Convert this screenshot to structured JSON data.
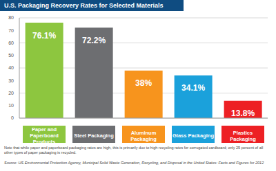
{
  "chart_data": {
    "type": "bar",
    "title": "U.S. Packaging Recovery Rates for Selected Materials",
    "categories": [
      "Paper and Paperboard Products",
      "Steel Packaging",
      "Aluminum Packaging",
      "Glass Packaging",
      "Plastics Packaging"
    ],
    "values": [
      76.1,
      72.2,
      38,
      34.1,
      13.8
    ],
    "value_labels": [
      "76.1%",
      "72.2%",
      "38%",
      "34.1%",
      "13.8%"
    ],
    "colors": [
      "#8dc63f",
      "#6d6e71",
      "#f7941d",
      "#1ba1db",
      "#ed2024"
    ],
    "ylim": [
      0,
      80
    ],
    "yticks": [
      0,
      10,
      20,
      30,
      40,
      50,
      60,
      70,
      80
    ],
    "grid": true,
    "data_labels": true,
    "note": "Note that while paper and paperboard packaging rates are high, this is primarily due to high recycling rates for corrugated cardboard; only 25 percent of all other types of paper packaging is recycled.",
    "source": "Source: US Environmental Protection Agency, Municipal Solid Waste Generation, Recycling, and Disposal in the United States: Facts and Figures for 2012"
  }
}
